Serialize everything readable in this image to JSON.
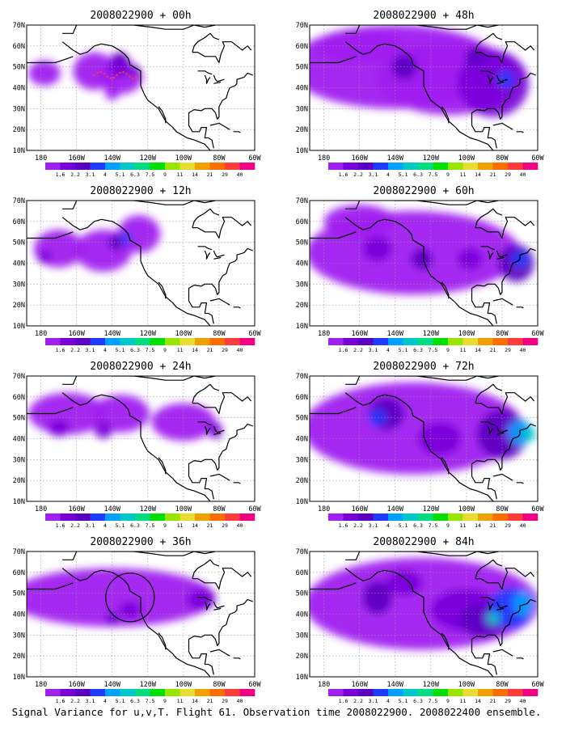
{
  "figure": {
    "footer": "Signal Variance for u,v,T. Flight 61. Observation time 2008022900. 2008022400 ensemble."
  },
  "axes": {
    "lat_ticks": [
      "70N",
      "60N",
      "50N",
      "40N",
      "30N",
      "20N",
      "10N"
    ],
    "lon_ticks": [
      "180",
      "160W",
      "140W",
      "120W",
      "100W",
      "80W",
      "60W"
    ]
  },
  "colorbar": {
    "labels": [
      "1.6",
      "2.2",
      "3.1",
      "4",
      "5.1",
      "6.3",
      "7.5",
      "9",
      "11",
      "14",
      "21",
      "29",
      "40"
    ],
    "colors": [
      "#a020f0",
      "#7800d8",
      "#5a00c0",
      "#1e3cff",
      "#00a0ff",
      "#00c8c8",
      "#00dc80",
      "#00e000",
      "#96e600",
      "#e6dc32",
      "#f0a000",
      "#fa6e00",
      "#ff3c3c",
      "#f00082"
    ]
  },
  "panels": [
    {
      "title": "2008022900 + 00h"
    },
    {
      "title": "2008022900 + 48h"
    },
    {
      "title": "2008022900 + 12h"
    },
    {
      "title": "2008022900 + 60h"
    },
    {
      "title": "2008022900 + 24h"
    },
    {
      "title": "2008022900 + 72h"
    },
    {
      "title": "2008022900 + 36h"
    },
    {
      "title": "2008022900 + 84h"
    }
  ]
}
